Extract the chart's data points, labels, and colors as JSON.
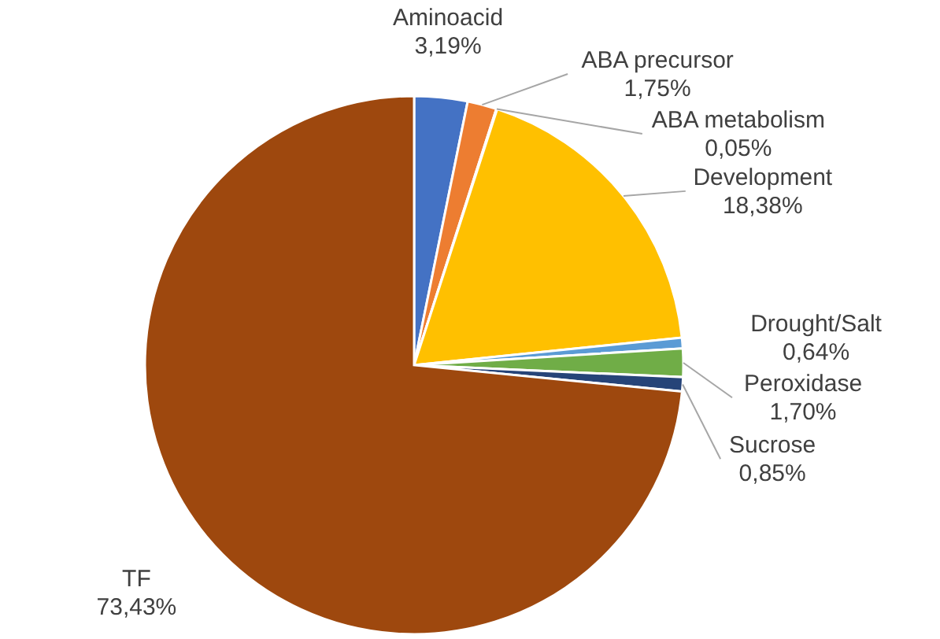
{
  "chart_data": {
    "type": "pie",
    "categories": [
      "Aminoacid",
      "ABA precursor",
      "ABA metabolism",
      "Development",
      "Drought/Salt",
      "Peroxidase",
      "Sucrose",
      "TF"
    ],
    "values": [
      3.19,
      1.75,
      0.05,
      18.38,
      0.64,
      1.7,
      0.85,
      73.43
    ],
    "value_labels": [
      "3,19%",
      "1,75%",
      "0,05%",
      "18,38%",
      "0,64%",
      "1,70%",
      "0,85%",
      "73,43%"
    ],
    "colors": [
      "#4472c4",
      "#ed7d31",
      "#a5a5a5",
      "#ffc000",
      "#5b9bd5",
      "#70ad47",
      "#264478",
      "#9e480e"
    ]
  }
}
